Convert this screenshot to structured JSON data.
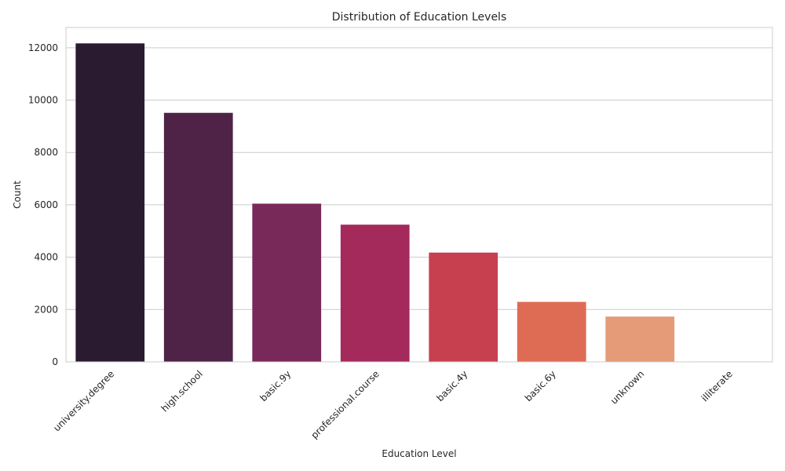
{
  "chart_data": {
    "type": "bar",
    "title": "Distribution of Education Levels",
    "xlabel": "Education Level",
    "ylabel": "Count",
    "categories": [
      "university.degree",
      "high.school",
      "basic.9y",
      "professional.course",
      "basic.4y",
      "basic.6y",
      "unknown",
      "illiterate"
    ],
    "values": [
      12168,
      9515,
      6045,
      5243,
      4176,
      2292,
      1731,
      18
    ],
    "colors": [
      "#2b1b31",
      "#4e2347",
      "#792959",
      "#a32a5b",
      "#c7404f",
      "#de6c55",
      "#e59b78",
      "#f3d8c2"
    ],
    "y_ticks": [
      0,
      2000,
      4000,
      6000,
      8000,
      10000,
      12000
    ],
    "y_tick_labels": [
      "0",
      "2000",
      "4000",
      "6000",
      "8000",
      "10000",
      "12000"
    ],
    "ylim": [
      0,
      12776
    ],
    "grid": "horizontal",
    "legend": "none"
  }
}
